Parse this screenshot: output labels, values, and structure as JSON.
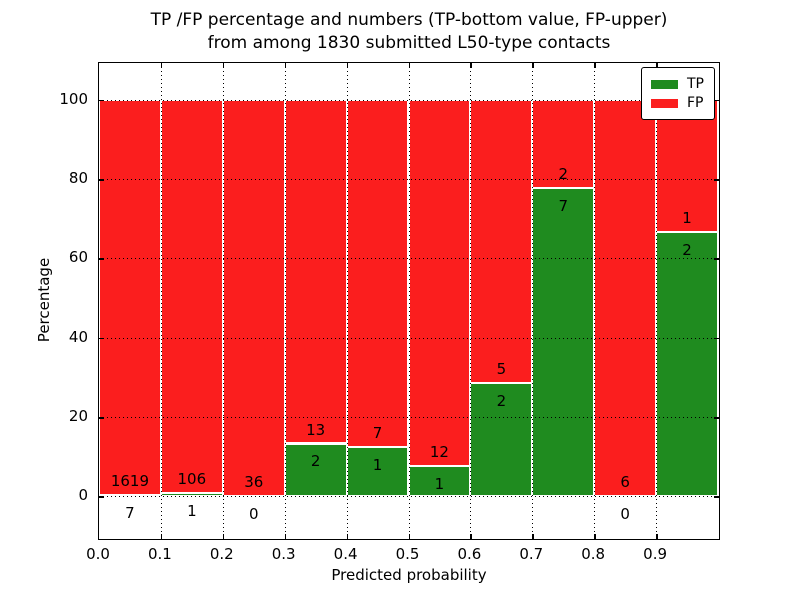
{
  "figure": {
    "title_line1": "TP /FP percentage and numbers (TP-bottom value, FP-upper)",
    "title_line2": "from among 1830 submitted L50-type contacts",
    "xlabel": "Predicted probability",
    "ylabel": "Percentage"
  },
  "legend": {
    "items": [
      {
        "label": "TP",
        "color": "#1f8b1f"
      },
      {
        "label": "FP",
        "color": "#fb1e1e"
      }
    ]
  },
  "chart_data": {
    "type": "bar",
    "variant": "stacked-percentage",
    "title": "TP /FP percentage and numbers (TP-bottom value, FP-upper) from among 1830 submitted L50-type contacts",
    "xlabel": "Predicted probability",
    "ylabel": "Percentage",
    "total_contacts": 1830,
    "bin_edges": [
      0.0,
      0.1,
      0.2,
      0.3,
      0.4,
      0.5,
      0.6,
      0.7,
      0.8,
      0.9,
      1.0
    ],
    "categories": [
      "0.0-0.1",
      "0.1-0.2",
      "0.2-0.3",
      "0.3-0.4",
      "0.4-0.5",
      "0.5-0.6",
      "0.6-0.7",
      "0.7-0.8",
      "0.8-0.9",
      "0.9-1.0"
    ],
    "series": [
      {
        "name": "TP",
        "color": "#1f8b1f",
        "counts": [
          7,
          1,
          0,
          2,
          1,
          1,
          2,
          7,
          0,
          2
        ]
      },
      {
        "name": "FP",
        "color": "#fb1e1e",
        "counts": [
          1619,
          106,
          36,
          13,
          7,
          12,
          5,
          2,
          6,
          1
        ]
      }
    ],
    "tp_percent": [
      0.43,
      0.93,
      0.0,
      13.33,
      12.5,
      7.69,
      28.57,
      77.78,
      0.0,
      66.67
    ],
    "xtick_labels": [
      "0.0",
      "0.1",
      "0.2",
      "0.3",
      "0.4",
      "0.5",
      "0.6",
      "0.7",
      "0.8",
      "0.9"
    ],
    "ytick_values": [
      0,
      20,
      40,
      60,
      80,
      100
    ],
    "ylim": [
      -10.5,
      109.3
    ],
    "xlim": [
      0.0,
      1.0
    ],
    "grid": "dotted, drawn above bars",
    "legend_position": "upper right",
    "bar_edge_color": "#ffffff"
  }
}
